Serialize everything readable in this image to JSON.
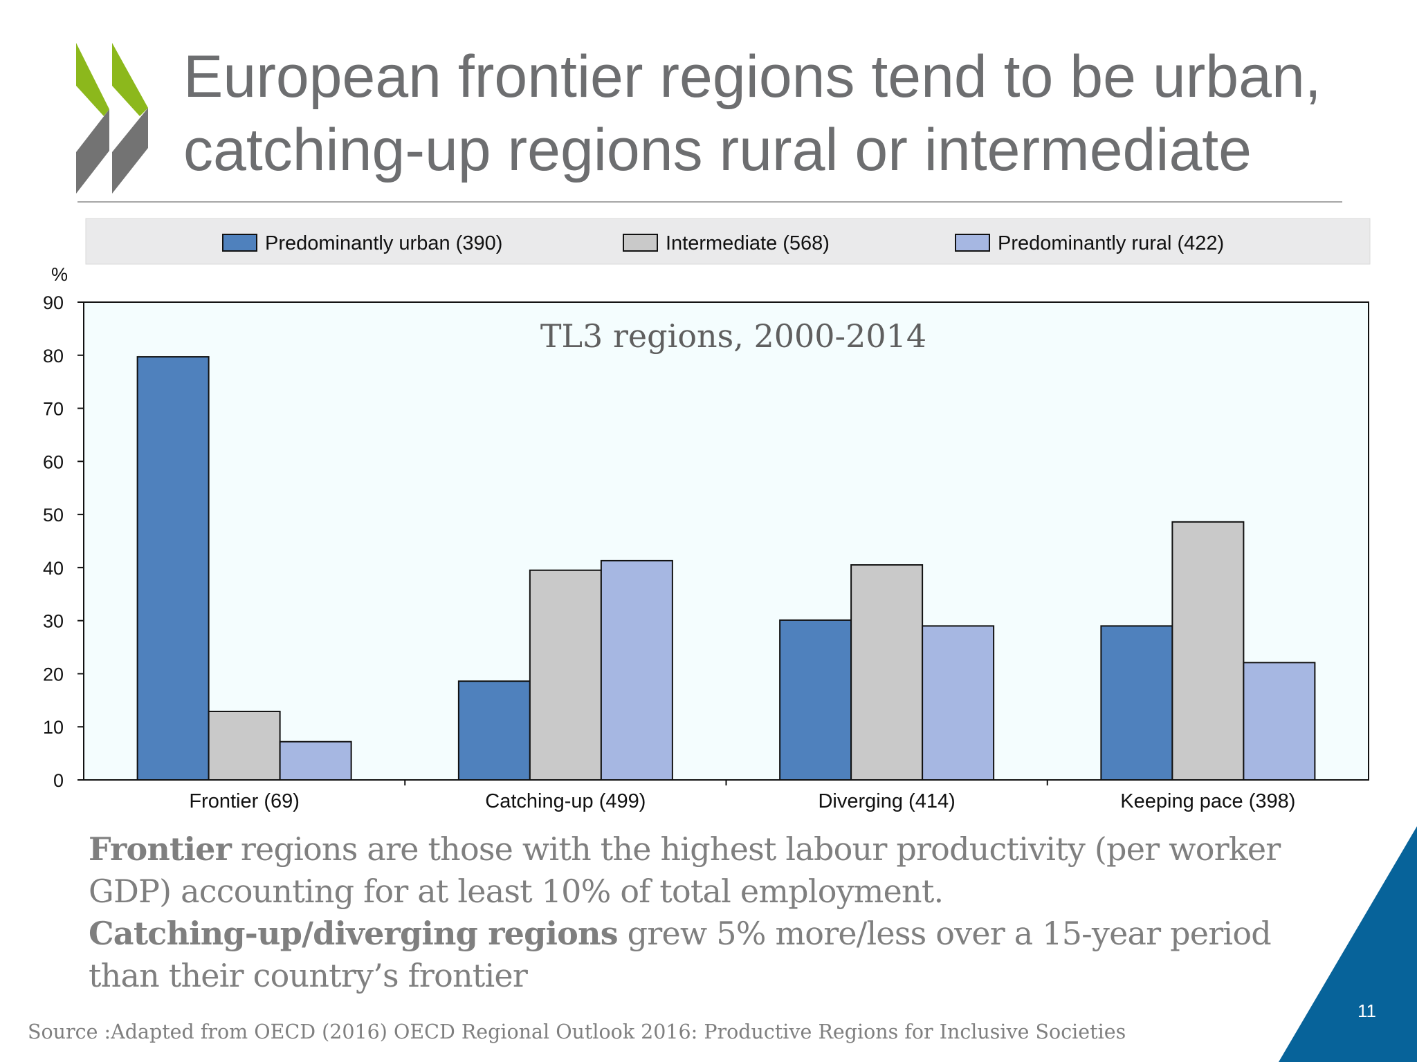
{
  "slide": {
    "title_line1": "European frontier regions tend to be urban,",
    "title_line2": "catching-up regions rural or intermediate",
    "logo_icon": "oecd-chevrons-icon",
    "caption": {
      "line1_bold": "Frontier",
      "line1_rest": " regions are those with the highest labour productivity (per worker",
      "line2": "GDP) accounting for at least 10% of total employment.",
      "line3_bold": "Catching-up/diverging regions",
      "line3_rest": " grew 5% more/less over a 15-year period",
      "line4": "than their country’s frontier"
    },
    "source": "Source :Adapted from  OECD (2016) OECD Regional Outlook 2016: Productive Regions for Inclusive Societies",
    "page_number": "11",
    "colors": {
      "title": "#6d6e70",
      "logo_green": "#8cb81c",
      "logo_gray": "#737373",
      "corner_blue": "#07639a",
      "plot_background": "#f4fdfe",
      "legend_background": "#eaeaeb"
    }
  },
  "chart_data": {
    "type": "bar",
    "subtitle": "TL3 regions, 2000-2014",
    "ylabel": "%",
    "ylim": [
      0,
      90
    ],
    "yticks": [
      0,
      10,
      20,
      30,
      40,
      50,
      60,
      70,
      80,
      90
    ],
    "categories": [
      "Frontier (69)",
      "Catching-up (499)",
      "Diverging (414)",
      "Keeping pace (398)"
    ],
    "series": [
      {
        "name": "Predominantly urban (390)",
        "color": "#4f81bd",
        "values": [
          79.7,
          18.6,
          30.1,
          29.0
        ]
      },
      {
        "name": "Intermediate (568)",
        "color": "#c9c9c9",
        "values": [
          12.9,
          39.5,
          40.5,
          48.6
        ]
      },
      {
        "name": "Predominantly rural (422)",
        "color": "#a6b7e2",
        "values": [
          7.2,
          41.3,
          29.0,
          22.1
        ]
      }
    ],
    "legend_position": "top",
    "grid": false
  }
}
